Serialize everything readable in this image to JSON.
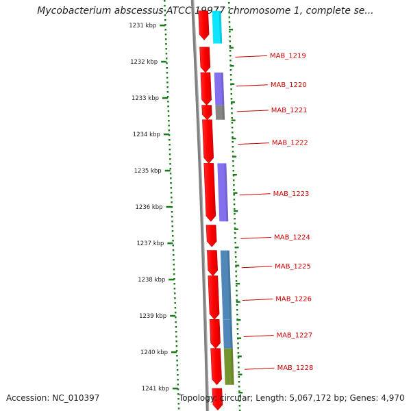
{
  "title": "Mycobacterium abscessus ATCC 19977 chromosome 1, complete se...",
  "accession": "Accession: NC_010397",
  "topology": "Topology: circular; Length: 5,067,172 bp; Genes: 4,970",
  "colors": {
    "forward_feature": "#ff0000",
    "backbone": "#808080",
    "cyan_feature": "#00e5ff",
    "purple_feature": "#7b68ee",
    "gray_feature": "#808080",
    "steelblue_feature": "#4682b4",
    "olive_feature": "#6b8e23",
    "tick": "#1a7a1a",
    "label": "#cc0000"
  },
  "scale_labels": [
    "1231 kbp",
    "1232 kbp",
    "1233 kbp",
    "1234 kbp",
    "1235 kbp",
    "1236 kbp",
    "1237 kbp",
    "1238 kbp",
    "1239 kbp",
    "1240 kbp",
    "1241 kbp"
  ],
  "gene_labels": [
    "MAB_1219",
    "MAB_1220",
    "MAB_1221",
    "MAB_1222",
    "MAB_1223",
    "MAB_1224",
    "MAB_1225",
    "MAB_1226",
    "MAB_1227",
    "MAB_1228"
  ],
  "forward_genes": [
    {
      "start_kbp": 1230.6,
      "end_kbp": 1231.4
    },
    {
      "start_kbp": 1231.6,
      "end_kbp": 1232.3
    },
    {
      "start_kbp": 1232.3,
      "end_kbp": 1233.2
    },
    {
      "start_kbp": 1233.2,
      "end_kbp": 1233.6
    },
    {
      "start_kbp": 1233.6,
      "end_kbp": 1234.8
    },
    {
      "start_kbp": 1234.8,
      "end_kbp": 1236.4
    },
    {
      "start_kbp": 1236.5,
      "end_kbp": 1237.1
    },
    {
      "start_kbp": 1237.2,
      "end_kbp": 1237.9
    },
    {
      "start_kbp": 1237.9,
      "end_kbp": 1239.1
    },
    {
      "start_kbp": 1239.1,
      "end_kbp": 1239.9
    },
    {
      "start_kbp": 1239.9,
      "end_kbp": 1240.9
    },
    {
      "start_kbp": 1241.0,
      "end_kbp": 1241.6
    }
  ],
  "colored_features": [
    {
      "color": "cyan_feature",
      "start_kbp": 1230.6,
      "end_kbp": 1231.5
    },
    {
      "color": "purple_feature",
      "start_kbp": 1232.3,
      "end_kbp": 1233.2
    },
    {
      "color": "gray_feature",
      "start_kbp": 1233.2,
      "end_kbp": 1233.6
    },
    {
      "color": "purple_feature",
      "start_kbp": 1234.8,
      "end_kbp": 1236.4
    },
    {
      "color": "steelblue_feature",
      "start_kbp": 1237.2,
      "end_kbp": 1238.0
    },
    {
      "color": "steelblue_feature",
      "start_kbp": 1238.0,
      "end_kbp": 1239.1
    },
    {
      "color": "steelblue_feature",
      "start_kbp": 1239.1,
      "end_kbp": 1239.9
    },
    {
      "color": "olive_feature",
      "start_kbp": 1239.9,
      "end_kbp": 1240.9
    }
  ],
  "label_anchors_kbp": [
    1231.8,
    1232.6,
    1233.3,
    1234.2,
    1235.6,
    1236.8,
    1237.6,
    1238.5,
    1239.5,
    1240.4
  ]
}
